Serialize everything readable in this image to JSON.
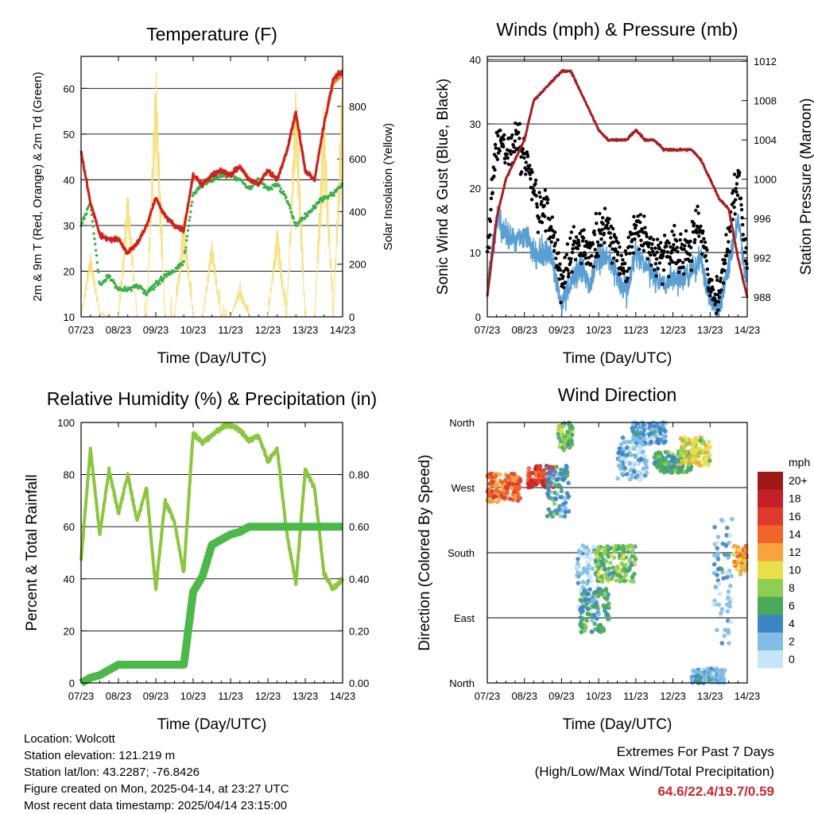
{
  "colors": {
    "temp_red": "#cc2222",
    "temp_orange": "#f08a24",
    "dewpoint_green": "#3cb04a",
    "solar_yellow": "#f7dc6f",
    "wind_blue": "#5a9fd4",
    "gust_black": "#000000",
    "pressure_maroon": "#a52020",
    "rh_lightgreen": "#8cc63f",
    "precip_green": "#4cb848"
  },
  "time_ticks": [
    "07/23",
    "08/23",
    "09/23",
    "10/23",
    "11/23",
    "12/23",
    "13/23",
    "14/23"
  ],
  "chart_data": [
    {
      "id": "temperature",
      "type": "line",
      "title": "Temperature (F)",
      "xlabel": "Time (Day/UTC)",
      "ylabel": "2m & 9m T (Red, Orange) & 2m Td (Green)",
      "y2label": "Solar Insolation (Yellow)",
      "ylim": [
        10,
        67
      ],
      "y2lim": [
        0,
        990
      ],
      "yticks": [
        "10",
        "20",
        "30",
        "40",
        "50",
        "60"
      ],
      "y2ticks": [
        "0",
        "200",
        "400",
        "600",
        "800"
      ],
      "grid": true,
      "x": [
        7,
        7.25,
        7.5,
        7.75,
        8,
        8.25,
        8.5,
        8.75,
        9,
        9.25,
        9.5,
        9.75,
        10,
        10.25,
        10.5,
        10.75,
        11,
        11.25,
        11.5,
        11.75,
        12,
        12.25,
        12.5,
        12.75,
        13,
        13.25,
        13.5,
        13.75,
        14
      ],
      "series": [
        {
          "name": "2m T",
          "axis": "left",
          "values": [
            46,
            35,
            28,
            27,
            27,
            24,
            26,
            30,
            36,
            32,
            30,
            29,
            41,
            39,
            41,
            42,
            41,
            43,
            40,
            39,
            42,
            40,
            46,
            55,
            42,
            40,
            52,
            62,
            64
          ]
        },
        {
          "name": "9m T",
          "axis": "left",
          "values": [
            46,
            35,
            28,
            27,
            27,
            24,
            26,
            30,
            36,
            32,
            30,
            29,
            41,
            39,
            41,
            42,
            41,
            43,
            40,
            39,
            42,
            40,
            46,
            54,
            42,
            40,
            52,
            61,
            63
          ]
        },
        {
          "name": "2m Td",
          "axis": "left",
          "values": [
            30,
            35,
            17,
            19,
            16,
            16,
            17,
            15,
            17,
            19,
            20,
            22,
            37,
            39,
            40,
            41,
            41,
            40,
            38,
            40,
            38,
            39,
            36,
            30,
            32,
            34,
            36,
            37,
            39
          ]
        },
        {
          "name": "Solar Insolation",
          "axis": "right",
          "values": [
            0,
            250,
            20,
            0,
            0,
            500,
            0,
            0,
            980,
            0,
            0,
            400,
            0,
            0,
            300,
            0,
            0,
            120,
            0,
            0,
            0,
            360,
            0,
            910,
            0,
            0,
            830,
            0,
            980
          ]
        }
      ]
    },
    {
      "id": "winds",
      "type": "scatter",
      "title": "Winds (mph) & Pressure (mb)",
      "xlabel": "Time (Day/UTC)",
      "ylabel": "Sonic Wind & Gust (Blue, Black)",
      "y2label": "Station Pressure (Maroon)",
      "ylim": [
        0,
        40.5
      ],
      "y2lim": [
        986,
        1012.5
      ],
      "yticks": [
        "0",
        "10",
        "20",
        "30",
        "40"
      ],
      "y2ticks": [
        "988",
        "992",
        "996",
        "1000",
        "1004",
        "1008",
        "1012"
      ],
      "grid": true,
      "x": [
        7,
        7.25,
        7.5,
        7.75,
        8,
        8.25,
        8.5,
        8.75,
        9,
        9.25,
        9.5,
        9.75,
        10,
        10.25,
        10.5,
        10.75,
        11,
        11.25,
        11.5,
        11.75,
        12,
        12.25,
        12.5,
        12.75,
        13,
        13.25,
        13.5,
        13.75,
        14
      ],
      "series": [
        {
          "name": "Sonic Wind",
          "values": [
            5,
            15,
            13,
            12,
            13,
            10,
            10,
            9,
            2,
            5,
            8,
            5,
            9,
            10,
            6,
            4,
            10,
            8,
            6,
            5,
            6,
            6,
            7,
            9,
            3,
            1,
            8,
            15,
            5
          ]
        },
        {
          "name": "Gust",
          "values": [
            10,
            28,
            25,
            27,
            26,
            18,
            16,
            14,
            5,
            10,
            12,
            9,
            13,
            14,
            10,
            8,
            14,
            12,
            10,
            9,
            11,
            10,
            11,
            15,
            5,
            3,
            12,
            23,
            9
          ]
        },
        {
          "name": "Station Pressure",
          "values": [
            988,
            996,
            1000,
            1002,
            1004,
            1008,
            1009,
            1010,
            1011,
            1011,
            1009,
            1007,
            1005,
            1004,
            1004,
            1004,
            1005,
            1004,
            1004,
            1003,
            1003,
            1003,
            1003,
            1002,
            1000,
            998,
            997,
            992,
            988
          ]
        }
      ]
    },
    {
      "id": "humidity",
      "type": "line",
      "title": "Relative Humidity (%) & Precipitation (in)",
      "xlabel": "Time (Day/UTC)",
      "ylabel": "Percent & Total Rainfall",
      "ylim": [
        0,
        100
      ],
      "y2lim": [
        0,
        1.0
      ],
      "yticks": [
        "0",
        "20",
        "40",
        "60",
        "80",
        "100"
      ],
      "y2ticks": [
        "0.00",
        "0.20",
        "0.40",
        "0.60",
        "0.80"
      ],
      "grid": true,
      "x": [
        7,
        7.25,
        7.5,
        7.75,
        8,
        8.25,
        8.5,
        8.75,
        9,
        9.25,
        9.5,
        9.75,
        10,
        10.25,
        10.5,
        10.75,
        11,
        11.25,
        11.5,
        11.75,
        12,
        12.25,
        12.5,
        12.75,
        13,
        13.25,
        13.5,
        13.75,
        14
      ],
      "series": [
        {
          "name": "Relative Humidity",
          "axis": "left",
          "values": [
            47,
            90,
            57,
            82,
            65,
            80,
            62,
            75,
            36,
            70,
            62,
            42,
            96,
            92,
            95,
            98,
            99,
            97,
            93,
            95,
            85,
            90,
            58,
            38,
            82,
            75,
            42,
            36,
            40
          ]
        },
        {
          "name": "Total Precipitation",
          "axis": "right",
          "values": [
            0.0,
            0.02,
            0.03,
            0.05,
            0.07,
            0.07,
            0.07,
            0.07,
            0.07,
            0.07,
            0.07,
            0.07,
            0.35,
            0.41,
            0.53,
            0.55,
            0.57,
            0.58,
            0.6,
            0.6,
            0.6,
            0.6,
            0.6,
            0.6,
            0.6,
            0.6,
            0.6,
            0.6,
            0.6
          ]
        }
      ]
    },
    {
      "id": "direction",
      "type": "scatter",
      "title": "Wind Direction",
      "xlabel": "Time (Day/UTC)",
      "ylabel": "Direction (Colored By Speed)",
      "ylim": [
        0,
        360
      ],
      "yticks": [
        "North",
        "East",
        "South",
        "West",
        "North"
      ],
      "grid": true,
      "legend_title": "mph",
      "legend_labels": [
        "20+",
        "18",
        "16",
        "14",
        "12",
        "10",
        "8",
        "6",
        "4",
        "2",
        "0"
      ],
      "legend_colors": [
        "#9e1a1a",
        "#c42026",
        "#e03a2a",
        "#f0642a",
        "#f7a43c",
        "#e9df4a",
        "#8ccf52",
        "#4aaa5a",
        "#3c86c3",
        "#82bde6",
        "#c6e6f8"
      ],
      "clusters": [
        {
          "x": [
            7.0,
            7.9
          ],
          "dir": [
            250,
            290
          ],
          "speed": 14
        },
        {
          "x": [
            8.1,
            8.8
          ],
          "dir": [
            270,
            300
          ],
          "speed": 16
        },
        {
          "x": [
            8.6,
            9.2
          ],
          "dir": [
            230,
            300
          ],
          "speed": 4
        },
        {
          "x": [
            8.9,
            9.3
          ],
          "dir": [
            320,
            360
          ],
          "speed": 7
        },
        {
          "x": [
            9.4,
            10.0
          ],
          "dir": [
            100,
            190
          ],
          "speed": 1
        },
        {
          "x": [
            9.5,
            10.3
          ],
          "dir": [
            70,
            130
          ],
          "speed": 5
        },
        {
          "x": [
            9.9,
            11.0
          ],
          "dir": [
            140,
            190
          ],
          "speed": 7
        },
        {
          "x": [
            10.5,
            11.3
          ],
          "dir": [
            280,
            340
          ],
          "speed": 2
        },
        {
          "x": [
            10.9,
            11.8
          ],
          "dir": [
            330,
            360
          ],
          "speed": 3
        },
        {
          "x": [
            11.5,
            12.5
          ],
          "dir": [
            290,
            320
          ],
          "speed": 6
        },
        {
          "x": [
            12.2,
            13.0
          ],
          "dir": [
            300,
            340
          ],
          "speed": 10
        },
        {
          "x": [
            12.5,
            13.3
          ],
          "dir": [
            0,
            20
          ],
          "speed": 3
        },
        {
          "x": [
            13.0,
            13.4
          ],
          "dir": [
            0,
            20
          ],
          "speed": 2
        },
        {
          "x": [
            13.1,
            13.6
          ],
          "dir": [
            50,
            230
          ],
          "speed": 2
        },
        {
          "x": [
            13.6,
            14.0
          ],
          "dir": [
            150,
            190
          ],
          "speed": 12
        }
      ]
    }
  ],
  "info": {
    "location": "Location: Wolcott",
    "elevation": "Station elevation: 121.219 m",
    "latlon": "Station lat/lon: 43.2287; -76.8426",
    "created": "Figure created on Mon, 2025-04-14, at 23:27 UTC",
    "recent": "Most recent data timestamp: 2025/04/14 23:15:00"
  },
  "extremes": {
    "title": "Extremes For Past 7 Days",
    "subtitle": "(High/Low/Max Wind/Total Precipitation)",
    "values": "64.6/22.4/19.7/0.59"
  }
}
